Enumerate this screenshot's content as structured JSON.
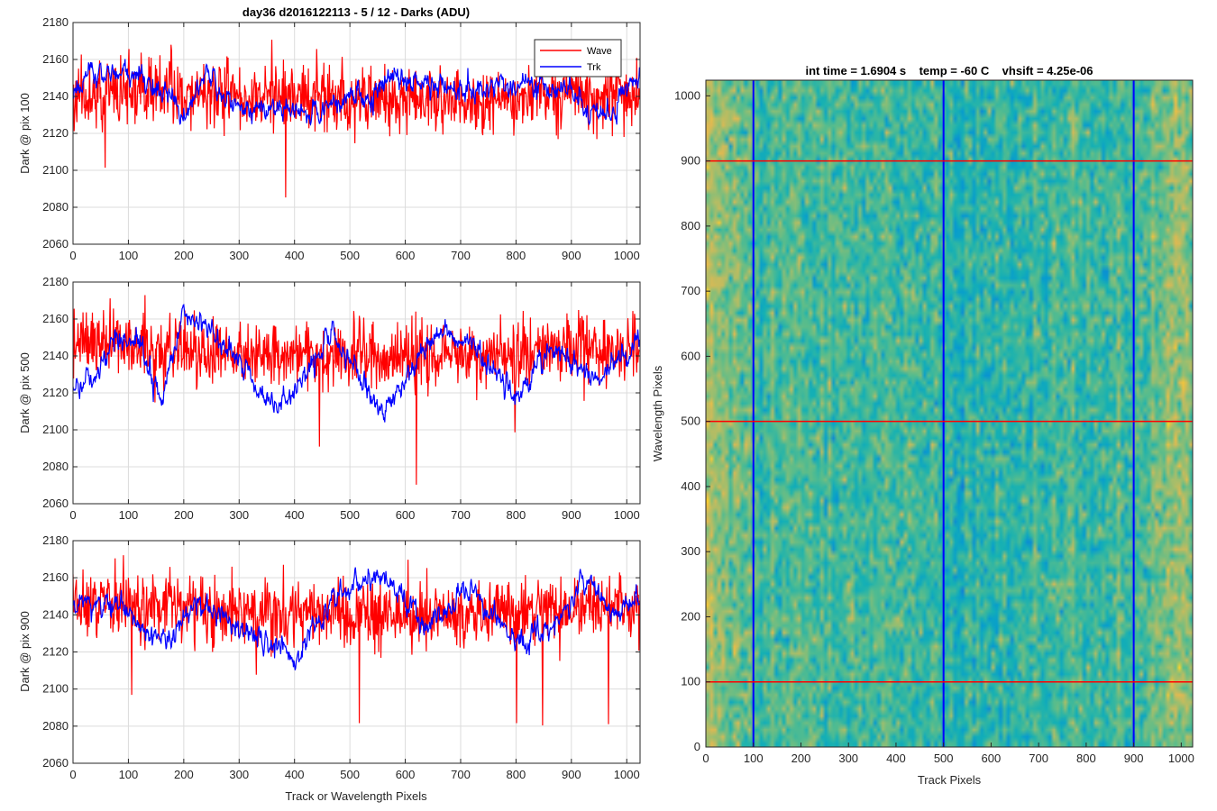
{
  "chart_data": [
    {
      "type": "line",
      "title": "day36 d2016122113 - 5 / 12 - Darks (ADU)",
      "xlabel": "",
      "ylabel": "Dark @ pix 100",
      "xlim": [
        0,
        1024
      ],
      "ylim": [
        2060,
        2180
      ],
      "xticks": [
        0,
        100,
        200,
        300,
        400,
        500,
        600,
        700,
        800,
        900,
        1000
      ],
      "yticks": [
        2060,
        2080,
        2100,
        2120,
        2140,
        2160,
        2180
      ],
      "grid": true,
      "legend": {
        "position": "top-right",
        "entries": [
          "Wave",
          "Trk"
        ]
      },
      "series": [
        {
          "name": "Wave",
          "color": "#ff0000",
          "n": 1024,
          "mean": 2141,
          "noise": 9,
          "drift": [
            [
              0,
              0
            ],
            [
              200,
              1
            ],
            [
              400,
              -2
            ],
            [
              600,
              -3
            ],
            [
              800,
              -2
            ],
            [
              1024,
              1
            ]
          ],
          "seed": 11
        },
        {
          "name": "Trk",
          "color": "#0000ff",
          "n": 1024,
          "mean": 2138,
          "noise": 3.5,
          "drift": [
            [
              0,
              6
            ],
            [
              40,
              14
            ],
            [
              100,
              15
            ],
            [
              160,
              5
            ],
            [
              200,
              -8
            ],
            [
              240,
              15
            ],
            [
              300,
              -5
            ],
            [
              350,
              -4
            ],
            [
              420,
              -8
            ],
            [
              480,
              -2
            ],
            [
              540,
              4
            ],
            [
              580,
              14
            ],
            [
              640,
              9
            ],
            [
              700,
              6
            ],
            [
              760,
              6
            ],
            [
              820,
              10
            ],
            [
              900,
              3
            ],
            [
              960,
              -12
            ],
            [
              1024,
              16
            ]
          ],
          "seed": 21
        }
      ]
    },
    {
      "type": "line",
      "title": "",
      "xlabel": "",
      "ylabel": "Dark @ pix 500",
      "xlim": [
        0,
        1024
      ],
      "ylim": [
        2060,
        2180
      ],
      "xticks": [
        0,
        100,
        200,
        300,
        400,
        500,
        600,
        700,
        800,
        900,
        1000
      ],
      "yticks": [
        2060,
        2080,
        2100,
        2120,
        2140,
        2160,
        2180
      ],
      "grid": true,
      "series": [
        {
          "name": "Wave",
          "color": "#ff0000",
          "n": 1024,
          "mean": 2142,
          "noise": 9,
          "drift": [
            [
              0,
              5
            ],
            [
              300,
              0
            ],
            [
              500,
              -3
            ],
            [
              700,
              -2
            ],
            [
              1024,
              4
            ]
          ],
          "seed": 31
        },
        {
          "name": "Trk",
          "color": "#0000ff",
          "n": 1024,
          "mean": 2140,
          "noise": 3.5,
          "drift": [
            [
              0,
              -15
            ],
            [
              40,
              -12
            ],
            [
              80,
              12
            ],
            [
              120,
              6
            ],
            [
              160,
              -22
            ],
            [
              200,
              22
            ],
            [
              240,
              17
            ],
            [
              300,
              -4
            ],
            [
              370,
              -28
            ],
            [
              430,
              -6
            ],
            [
              470,
              12
            ],
            [
              560,
              -32
            ],
            [
              660,
              15
            ],
            [
              720,
              6
            ],
            [
              800,
              -22
            ],
            [
              860,
              6
            ],
            [
              950,
              -14
            ],
            [
              1024,
              10
            ]
          ],
          "seed": 41
        }
      ]
    },
    {
      "type": "line",
      "title": "",
      "xlabel": "Track or Wavelength Pixels",
      "ylabel": "Dark @ pix 900",
      "xlim": [
        0,
        1024
      ],
      "ylim": [
        2060,
        2180
      ],
      "xticks": [
        0,
        100,
        200,
        300,
        400,
        500,
        600,
        700,
        800,
        900,
        1000
      ],
      "yticks": [
        2060,
        2080,
        2100,
        2120,
        2140,
        2160,
        2180
      ],
      "grid": true,
      "series": [
        {
          "name": "Wave",
          "color": "#ff0000",
          "n": 1024,
          "mean": 2143,
          "noise": 9,
          "drift": [
            [
              0,
              3
            ],
            [
              500,
              -4
            ],
            [
              1024,
              0
            ]
          ],
          "seed": 51
        },
        {
          "name": "Trk",
          "color": "#0000ff",
          "n": 1024,
          "mean": 2140,
          "noise": 3.5,
          "drift": [
            [
              0,
              6
            ],
            [
              80,
              6
            ],
            [
              170,
              -16
            ],
            [
              220,
              5
            ],
            [
              300,
              -8
            ],
            [
              400,
              -22
            ],
            [
              480,
              10
            ],
            [
              560,
              22
            ],
            [
              640,
              -8
            ],
            [
              720,
              15
            ],
            [
              800,
              -16
            ],
            [
              880,
              -4
            ],
            [
              920,
              22
            ],
            [
              980,
              0
            ],
            [
              1024,
              10
            ]
          ],
          "seed": 61
        }
      ]
    },
    {
      "type": "heatmap",
      "title": "int time = 1.6904 s    temp = -60 C    vhsift = 4.25e-06",
      "xlabel": "Track Pixels",
      "ylabel": "Wavelength Pixels",
      "xlim": [
        0,
        1024
      ],
      "ylim": [
        0,
        1024
      ],
      "xticks": [
        0,
        100,
        200,
        300,
        400,
        500,
        600,
        700,
        800,
        900,
        1000
      ],
      "yticks": [
        0,
        100,
        200,
        300,
        400,
        500,
        600,
        700,
        800,
        900,
        1000
      ],
      "colormap": "parula",
      "marker_lines": {
        "vertical": {
          "color": "#0000ff",
          "x": [
            100,
            500,
            900
          ]
        },
        "horizontal": {
          "color": "#ff0000",
          "y": [
            100,
            500,
            900
          ]
        }
      }
    }
  ]
}
